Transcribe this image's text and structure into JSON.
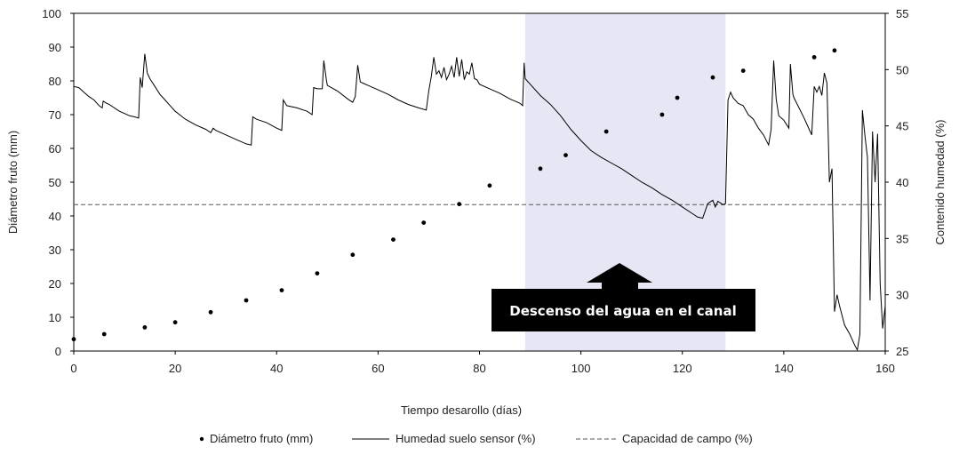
{
  "chart_data": {
    "type": "line",
    "xlabel": "Tiempo desarollo (días)",
    "ylabel_left": "Diámetro fruto (mm)",
    "ylabel_right": "Contenido humedad (%)",
    "xlim": [
      0,
      160
    ],
    "ylim_left": [
      0,
      100
    ],
    "ylim_right": [
      25,
      55
    ],
    "x_ticks": [
      "0",
      "20",
      "40",
      "60",
      "80",
      "100",
      "120",
      "140",
      "160"
    ],
    "y_left_ticks": [
      "0",
      "10",
      "20",
      "30",
      "40",
      "50",
      "60",
      "70",
      "80",
      "90",
      "100"
    ],
    "y_right_ticks": [
      "25",
      "30",
      "35",
      "40",
      "45",
      "50",
      "55"
    ],
    "grid": false,
    "legend_position": "bottom",
    "legend": {
      "diametro": "Diámetro fruto (mm)",
      "humedad": "Humedad suelo sensor (%)",
      "capacidad": "Capacidad de campo  (%)"
    },
    "annotation": {
      "text": "Descenso del agua en el canal",
      "shaded_x_range": [
        89,
        128.5
      ]
    },
    "series": [
      {
        "name": "Diámetro fruto (mm)",
        "style": "dots",
        "axis": "left",
        "color": "#000000",
        "points": [
          [
            0,
            3.5
          ],
          [
            6,
            5
          ],
          [
            14,
            7
          ],
          [
            20,
            8.5
          ],
          [
            27,
            11.5
          ],
          [
            34,
            15
          ],
          [
            41,
            18
          ],
          [
            48,
            23
          ],
          [
            55,
            28.5
          ],
          [
            63,
            33
          ],
          [
            69,
            38
          ],
          [
            76,
            43.5
          ],
          [
            82,
            49
          ],
          [
            92,
            54
          ],
          [
            97,
            58
          ],
          [
            105,
            65
          ],
          [
            116,
            70
          ],
          [
            119,
            75
          ],
          [
            126,
            81
          ],
          [
            132,
            83
          ],
          [
            146,
            87
          ],
          [
            150,
            89
          ]
        ]
      },
      {
        "name": "Humedad suelo sensor (%)",
        "style": "line",
        "axis": "right",
        "color": "#000000",
        "points": [
          [
            0,
            48.5
          ],
          [
            1,
            48.4
          ],
          [
            2,
            48
          ],
          [
            3,
            47.6
          ],
          [
            4,
            47.3
          ],
          [
            5,
            46.8
          ],
          [
            5.6,
            46.6
          ],
          [
            5.8,
            47.2
          ],
          [
            6.5,
            47
          ],
          [
            7,
            46.9
          ],
          [
            8,
            46.6
          ],
          [
            9,
            46.3
          ],
          [
            10,
            46.1
          ],
          [
            11,
            45.9
          ],
          [
            12,
            45.8
          ],
          [
            12.8,
            45.7
          ],
          [
            13.1,
            49.3
          ],
          [
            13.5,
            48.4
          ],
          [
            14,
            51.4
          ],
          [
            14.5,
            49.7
          ],
          [
            15,
            49.2
          ],
          [
            16,
            48.5
          ],
          [
            17,
            47.8
          ],
          [
            18,
            47.3
          ],
          [
            19,
            46.8
          ],
          [
            20,
            46.3
          ],
          [
            22,
            45.6
          ],
          [
            24,
            45.1
          ],
          [
            26,
            44.7
          ],
          [
            27,
            44.4
          ],
          [
            27.5,
            44.8
          ],
          [
            28,
            44.6
          ],
          [
            30,
            44.2
          ],
          [
            32,
            43.8
          ],
          [
            34,
            43.4
          ],
          [
            35,
            43.3
          ],
          [
            35.3,
            45.8
          ],
          [
            36,
            45.6
          ],
          [
            38,
            45.3
          ],
          [
            40,
            44.8
          ],
          [
            41,
            44.6
          ],
          [
            41.3,
            47.3
          ],
          [
            42,
            46.8
          ],
          [
            44,
            46.6
          ],
          [
            46,
            46.3
          ],
          [
            47,
            46
          ],
          [
            47.3,
            48.4
          ],
          [
            48,
            48.3
          ],
          [
            49,
            48.3
          ],
          [
            49.3,
            50.8
          ],
          [
            49.8,
            49.1
          ],
          [
            50,
            48.6
          ],
          [
            52,
            48.1
          ],
          [
            54,
            47.4
          ],
          [
            55,
            47.1
          ],
          [
            55.5,
            47.6
          ],
          [
            56,
            50.4
          ],
          [
            56.5,
            48.9
          ],
          [
            57,
            48.8
          ],
          [
            58,
            48.6
          ],
          [
            60,
            48.2
          ],
          [
            62,
            47.8
          ],
          [
            64,
            47.3
          ],
          [
            66,
            46.9
          ],
          [
            68,
            46.6
          ],
          [
            69.5,
            46.4
          ],
          [
            70,
            48.1
          ],
          [
            70.5,
            49.4
          ],
          [
            71,
            51.1
          ],
          [
            71.5,
            49.6
          ],
          [
            72,
            49.9
          ],
          [
            72.5,
            49.3
          ],
          [
            73,
            50.2
          ],
          [
            73.5,
            49.1
          ],
          [
            74,
            49.6
          ],
          [
            74.5,
            50.3
          ],
          [
            75,
            49.3
          ],
          [
            75.5,
            51.1
          ],
          [
            76,
            49.4
          ],
          [
            76.5,
            50.9
          ],
          [
            77,
            49.1
          ],
          [
            77.5,
            49.8
          ],
          [
            78,
            49.6
          ],
          [
            78.5,
            50.6
          ],
          [
            79,
            49.2
          ],
          [
            79.5,
            49.1
          ],
          [
            80,
            48.7
          ],
          [
            82,
            48.3
          ],
          [
            84,
            47.9
          ],
          [
            86,
            47.4
          ],
          [
            88,
            47
          ],
          [
            88.5,
            46.8
          ],
          [
            88.8,
            50.6
          ],
          [
            89,
            49.2
          ],
          [
            90,
            48.7
          ],
          [
            92,
            47.7
          ],
          [
            94,
            46.9
          ],
          [
            96,
            45.9
          ],
          [
            98,
            44.7
          ],
          [
            100,
            43.7
          ],
          [
            102,
            42.8
          ],
          [
            104,
            42.2
          ],
          [
            106,
            41.7
          ],
          [
            108,
            41.2
          ],
          [
            110,
            40.6
          ],
          [
            112,
            40
          ],
          [
            114,
            39.5
          ],
          [
            116,
            38.9
          ],
          [
            118,
            38.4
          ],
          [
            120,
            37.8
          ],
          [
            122,
            37.2
          ],
          [
            123,
            36.9
          ],
          [
            124,
            36.8
          ],
          [
            125,
            38.1
          ],
          [
            126,
            38.4
          ],
          [
            126.5,
            37.8
          ],
          [
            127,
            38.3
          ],
          [
            128,
            38
          ],
          [
            128.5,
            38.1
          ],
          [
            129,
            47.3
          ],
          [
            129.5,
            48
          ],
          [
            130,
            47.5
          ],
          [
            131,
            47
          ],
          [
            132,
            46.8
          ],
          [
            133,
            46
          ],
          [
            134,
            45.6
          ],
          [
            135,
            44.8
          ],
          [
            136,
            44.2
          ],
          [
            137,
            43.3
          ],
          [
            137.5,
            44.7
          ],
          [
            138,
            50.8
          ],
          [
            138.5,
            47.4
          ],
          [
            139,
            45.9
          ],
          [
            140,
            45.5
          ],
          [
            141,
            44.8
          ],
          [
            141.3,
            50.5
          ],
          [
            141.8,
            47.8
          ],
          [
            142,
            47.5
          ],
          [
            143,
            46.6
          ],
          [
            144,
            45.7
          ],
          [
            145,
            44.7
          ],
          [
            145.5,
            44.2
          ],
          [
            146,
            48.5
          ],
          [
            146.5,
            48
          ],
          [
            147,
            48.5
          ],
          [
            147.5,
            47.7
          ],
          [
            148,
            49.7
          ],
          [
            148.5,
            48.8
          ],
          [
            149,
            40
          ],
          [
            149.5,
            41.2
          ],
          [
            150,
            28.5
          ],
          [
            150.5,
            30
          ],
          [
            151,
            29
          ],
          [
            152,
            27.3
          ],
          [
            153,
            26.5
          ],
          [
            154,
            25.5
          ],
          [
            154.5,
            25.1
          ],
          [
            155,
            26.5
          ],
          [
            155.5,
            46.4
          ],
          [
            156,
            44.1
          ],
          [
            156.5,
            42.2
          ],
          [
            157,
            29.5
          ],
          [
            157.5,
            44.5
          ],
          [
            158,
            40
          ],
          [
            158.5,
            44.3
          ],
          [
            159,
            31
          ],
          [
            159.5,
            27
          ],
          [
            160,
            29
          ]
        ]
      },
      {
        "name": "Capacidad de campo  (%)",
        "style": "dashed",
        "axis": "right",
        "color": "#555555",
        "points": [
          [
            0,
            38
          ],
          [
            160,
            38
          ]
        ]
      }
    ]
  }
}
